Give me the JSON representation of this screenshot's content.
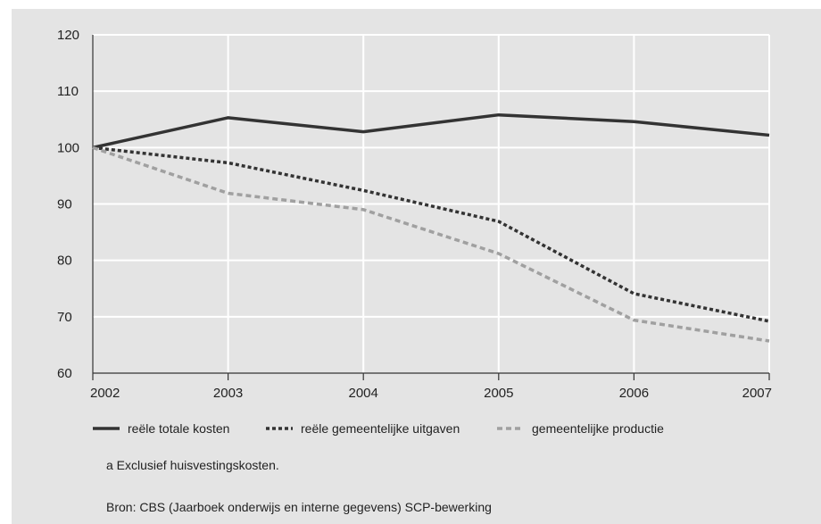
{
  "chart_data": {
    "type": "line",
    "x": [
      "2002",
      "2003",
      "2004",
      "2005",
      "2006",
      "2007"
    ],
    "ylim": [
      60,
      120
    ],
    "yticks": [
      60,
      70,
      80,
      90,
      100,
      110,
      120
    ],
    "grid": true,
    "legend_position": "bottom",
    "series": [
      {
        "name": "reële totale kosten",
        "values": [
          100,
          105.3,
          102.8,
          105.8,
          104.6,
          102.2
        ],
        "color": "#333333",
        "style": "solid"
      },
      {
        "name": "reële gemeentelijke uitgaven",
        "values": [
          100,
          97.3,
          92.4,
          86.9,
          74.1,
          69.2
        ],
        "color": "#333333",
        "style": "dotted"
      },
      {
        "name": "gemeentelijke productie",
        "values": [
          100,
          91.9,
          89.0,
          81.2,
          69.4,
          65.7
        ],
        "color": "#a0a0a0",
        "style": "dashed"
      }
    ]
  },
  "notes": {
    "footnote": "a   Exclusief huisvestingskosten.",
    "source": "Bron: CBS (Jaarboek onderwijs en interne gegevens) SCP-bewerking"
  }
}
